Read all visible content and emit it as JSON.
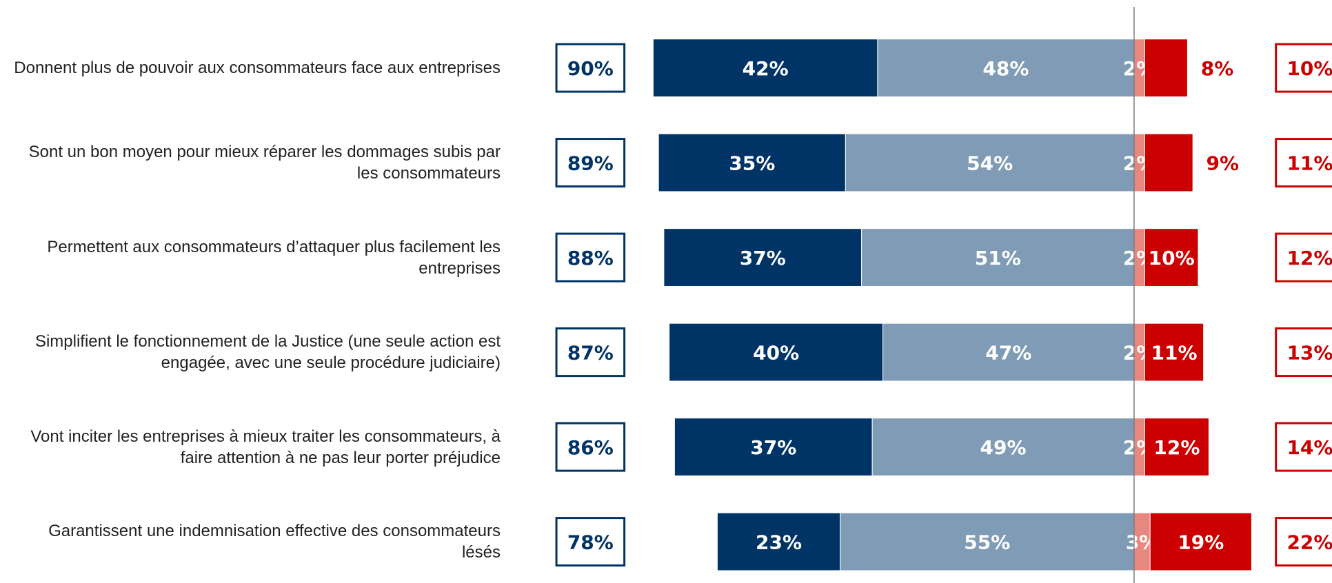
{
  "chart_data": {
    "type": "diverging_bar",
    "categories": [
      "Donnent plus de pouvoir aux consommateurs face aux entreprises",
      "Sont un bon moyen pour mieux réparer les dommages subis par les consommateurs",
      "Permettent aux consommateurs d’attaquer plus facilement les entreprises",
      "Simplifient le fonctionnement de la Justice (une seule action est engagée, avec une seule procédure judiciaire)",
      "Vont inciter les entreprises à mieux traiter les consommateurs, à faire attention à ne pas leur porter préjudice",
      "Garantissent une indemnisation effective des consommateurs lésés"
    ],
    "series": [
      {
        "color": "#003366",
        "side": "positive",
        "values": [
          42,
          35,
          37,
          40,
          37,
          23
        ],
        "value_labels": [
          "42%",
          "35%",
          "37%",
          "40%",
          "37%",
          "23%"
        ]
      },
      {
        "color": "#7f9bb5",
        "side": "positive",
        "values": [
          48,
          54,
          51,
          47,
          49,
          55
        ],
        "value_labels": [
          "48%",
          "54%",
          "51%",
          "47%",
          "49%",
          "55%"
        ]
      },
      {
        "color": "#e8877f",
        "side": "negative",
        "values": [
          2,
          2,
          2,
          2,
          2,
          3
        ],
        "value_labels": [
          "2%",
          "2%",
          "2%",
          "2%",
          "2%",
          "3%"
        ]
      },
      {
        "color": "#cc0000",
        "side": "negative",
        "values": [
          8,
          9,
          10,
          11,
          12,
          19
        ],
        "value_labels": [
          "8%",
          "9%",
          "10%",
          "11%",
          "12%",
          "19%"
        ]
      }
    ],
    "totals_positive": {
      "color": "#003366",
      "values": [
        90,
        89,
        88,
        87,
        86,
        78
      ],
      "value_labels": [
        "90%",
        "89%",
        "88%",
        "87%",
        "86%",
        "78%"
      ]
    },
    "totals_negative": {
      "color": "#cc0000",
      "values": [
        10,
        11,
        12,
        13,
        14,
        22
      ],
      "value_labels": [
        "10%",
        "11%",
        "12%",
        "13%",
        "14%",
        "22%"
      ]
    }
  }
}
